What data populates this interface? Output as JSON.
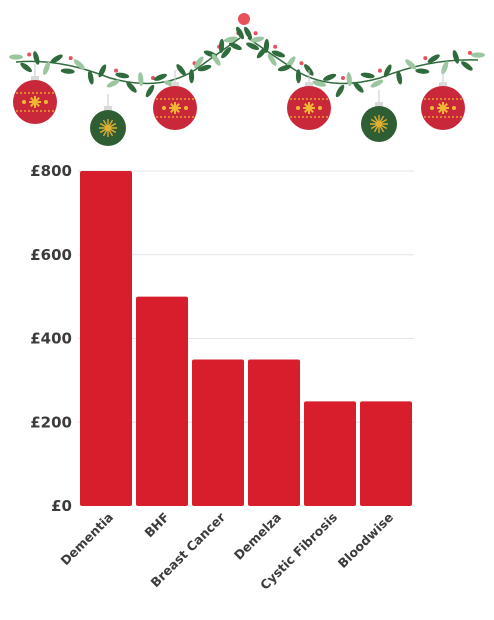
{
  "decoration": {
    "garland_colors": {
      "leaf_dark": "#2f6b3c",
      "leaf_light": "#9cc6a0",
      "berry": "#e8505b"
    },
    "ornaments": [
      {
        "icon": "red-bauble-icon",
        "color": "#c8283a",
        "pattern": "#f2b733"
      },
      {
        "icon": "green-bauble-icon",
        "color": "#2f5e35",
        "pattern": "#e0b030"
      },
      {
        "icon": "red-bauble-icon",
        "color": "#c8283a",
        "pattern": "#f2b733"
      },
      {
        "icon": "red-bauble-icon",
        "color": "#c8283a",
        "pattern": "#f2b733"
      },
      {
        "icon": "green-bauble-icon",
        "color": "#2f5e35",
        "pattern": "#e0b030"
      },
      {
        "icon": "red-bauble-icon",
        "color": "#c8283a",
        "pattern": "#f2b733"
      }
    ]
  },
  "chart_data": {
    "type": "bar",
    "categories": [
      "Dementia",
      "BHF",
      "Breast Cancer",
      "Demelza",
      "Cystic Fibrosis",
      "Bloodwise"
    ],
    "values": [
      800,
      500,
      350,
      350,
      250,
      250
    ],
    "ylim": [
      0,
      800
    ],
    "yticks": [
      0,
      200,
      400,
      600,
      800
    ],
    "ytick_labels": [
      "£0",
      "£200",
      "£400",
      "£600",
      "£800"
    ],
    "bar_color": "#d81e2c",
    "grid": true,
    "legend": "none",
    "title": "",
    "xlabel": "",
    "ylabel": ""
  }
}
